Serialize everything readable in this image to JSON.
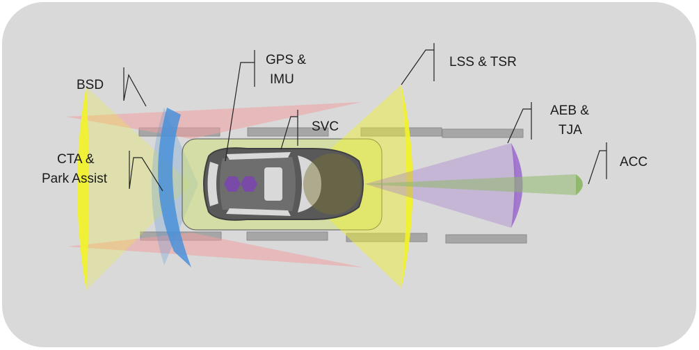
{
  "labels": {
    "bsd": "BSD",
    "gps_line1": "GPS &",
    "gps_line2": "IMU",
    "lss": "LSS & TSR",
    "aeb_line1": "AEB &",
    "aeb_line2": "TJA",
    "acc": "ACC",
    "svc": "SVC",
    "cta_line1": "CTA &",
    "cta_line2": "Park Assist"
  },
  "colors": {
    "background_panel": "#d9d9d9",
    "yellow_zone": "#f2f22a",
    "red_zone": "#f0a0a0",
    "blue_zone": "#4a90d9",
    "purple_zone": "#9966cc",
    "green_zone": "#8fb86b",
    "svc_zone": "#cfe07a",
    "lane_marking": "#a6a6a6",
    "car_body": "#595959",
    "sensor_hex": "#7a4aa8"
  }
}
